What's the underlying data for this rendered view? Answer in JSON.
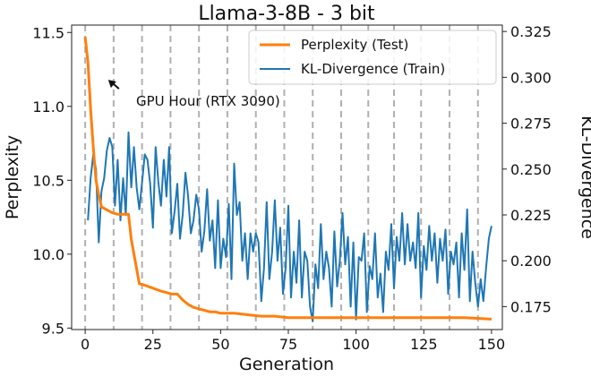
{
  "chart_data": {
    "type": "line",
    "title": "Llama-3-8B - 3 bit",
    "xlabel": "Generation",
    "ylabel": "Perplexity",
    "ylabel_right": "KL-Divergence",
    "xlim": [
      -5,
      154
    ],
    "ylim": [
      9.49,
      11.55
    ],
    "ylim_right": [
      0.1625,
      0.3285
    ],
    "x_ticks": [
      0,
      25,
      50,
      75,
      100,
      125,
      150
    ],
    "y_ticks": [
      9.5,
      10.0,
      10.5,
      11.0,
      11.5
    ],
    "y_tick_labels": [
      "9.5",
      "10.0",
      "10.5",
      "11.0",
      "11.5"
    ],
    "y_right_ticks": [
      0.175,
      0.2,
      0.225,
      0.25,
      0.275,
      0.3,
      0.325
    ],
    "y_right_tick_labels": [
      "0.175",
      "0.200",
      "0.225",
      "0.250",
      "0.275",
      "0.300",
      "0.325"
    ],
    "gpu_hour_marks": [
      0,
      10.5,
      21,
      31.5,
      42,
      52.5,
      63,
      73.5,
      84,
      94.5,
      104.5,
      114,
      124,
      134.5,
      145
    ],
    "annotation": {
      "text": "GPU Hour (RTX 3090)",
      "arrow_tip": [
        8.5,
        11.18
      ]
    },
    "legend_position": "top-right",
    "colors": {
      "perplexity": "#ff7f0e",
      "kl": "#1f77b4",
      "gpu_lines": "#b0b0b0"
    },
    "series": [
      {
        "name": "Perplexity (Test)",
        "axis": "left",
        "x": [
          0,
          1,
          2,
          3,
          4,
          5,
          6,
          8,
          10,
          12,
          14,
          16,
          17,
          18,
          20,
          22,
          25,
          28,
          30,
          32,
          34,
          36,
          38,
          40,
          42,
          44,
          46,
          48,
          50,
          55,
          60,
          65,
          70,
          75,
          80,
          85,
          90,
          95,
          100,
          110,
          120,
          130,
          140,
          150
        ],
        "y": [
          11.47,
          11.3,
          10.98,
          10.72,
          10.5,
          10.4,
          10.32,
          10.3,
          10.28,
          10.27,
          10.27,
          10.27,
          10.1,
          10.0,
          9.8,
          9.79,
          9.77,
          9.75,
          9.74,
          9.73,
          9.73,
          9.69,
          9.66,
          9.64,
          9.63,
          9.62,
          9.61,
          9.61,
          9.6,
          9.6,
          9.59,
          9.58,
          9.58,
          9.57,
          9.57,
          9.57,
          9.57,
          9.57,
          9.57,
          9.57,
          9.57,
          9.57,
          9.57,
          9.56
        ]
      },
      {
        "name": "KL-Divergence (Train)",
        "axis": "right",
        "x": [
          1,
          2,
          3,
          4,
          5,
          6,
          7,
          8,
          9,
          10,
          11,
          12,
          13,
          14,
          15,
          16,
          17,
          18,
          19,
          20,
          21,
          22,
          23,
          24,
          25,
          26,
          27,
          28,
          29,
          30,
          31,
          32,
          33,
          34,
          35,
          36,
          37,
          38,
          39,
          40,
          41,
          42,
          43,
          44,
          45,
          46,
          47,
          48,
          49,
          50,
          51,
          52,
          53,
          54,
          55,
          56,
          57,
          58,
          59,
          60,
          61,
          62,
          63,
          64,
          65,
          66,
          67,
          68,
          69,
          70,
          71,
          72,
          73,
          74,
          75,
          76,
          77,
          78,
          79,
          80,
          81,
          82,
          83,
          84,
          85,
          86,
          87,
          88,
          89,
          90,
          91,
          92,
          93,
          94,
          95,
          96,
          97,
          98,
          99,
          100,
          101,
          102,
          103,
          104,
          105,
          106,
          107,
          108,
          109,
          110,
          111,
          112,
          113,
          114,
          115,
          116,
          117,
          118,
          119,
          120,
          121,
          122,
          123,
          124,
          125,
          126,
          127,
          128,
          129,
          130,
          131,
          132,
          133,
          134,
          135,
          136,
          137,
          138,
          139,
          140,
          141,
          142,
          143,
          144,
          145,
          146,
          147,
          148,
          149,
          150
        ],
        "y": [
          0.222,
          0.245,
          0.258,
          0.25,
          0.21,
          0.238,
          0.245,
          0.26,
          0.267,
          0.262,
          0.23,
          0.255,
          0.222,
          0.245,
          0.225,
          0.27,
          0.24,
          0.262,
          0.24,
          0.228,
          0.243,
          0.258,
          0.255,
          0.242,
          0.218,
          0.262,
          0.243,
          0.23,
          0.255,
          0.235,
          0.262,
          0.215,
          0.227,
          0.242,
          0.212,
          0.225,
          0.248,
          0.235,
          0.215,
          0.222,
          0.236,
          0.228,
          0.205,
          0.216,
          0.239,
          0.211,
          0.222,
          0.196,
          0.233,
          0.196,
          0.212,
          0.202,
          0.231,
          0.19,
          0.253,
          0.225,
          0.232,
          0.2,
          0.215,
          0.19,
          0.215,
          0.205,
          0.215,
          0.21,
          0.178,
          0.196,
          0.232,
          0.19,
          0.205,
          0.233,
          0.2,
          0.218,
          0.182,
          0.196,
          0.23,
          0.18,
          0.205,
          0.188,
          0.222,
          0.18,
          0.205,
          0.2,
          0.175,
          0.167,
          0.198,
          0.185,
          0.22,
          0.19,
          0.205,
          0.196,
          0.175,
          0.216,
          0.186,
          0.2,
          0.226,
          0.198,
          0.213,
          0.175,
          0.21,
          0.168,
          0.202,
          0.2,
          0.215,
          0.172,
          0.197,
          0.19,
          0.215,
          0.18,
          0.193,
          0.172,
          0.205,
          0.195,
          0.22,
          0.185,
          0.213,
          0.2,
          0.226,
          0.198,
          0.22,
          0.2,
          0.21,
          0.196,
          0.226,
          0.18,
          0.208,
          0.195,
          0.219,
          0.2,
          0.215,
          0.188,
          0.212,
          0.2,
          0.217,
          0.182,
          0.205,
          0.198,
          0.21,
          0.18,
          0.215,
          0.195,
          0.228,
          0.178,
          0.205,
          0.188,
          0.175,
          0.19,
          0.178,
          0.196,
          0.212,
          0.219
        ]
      }
    ]
  }
}
